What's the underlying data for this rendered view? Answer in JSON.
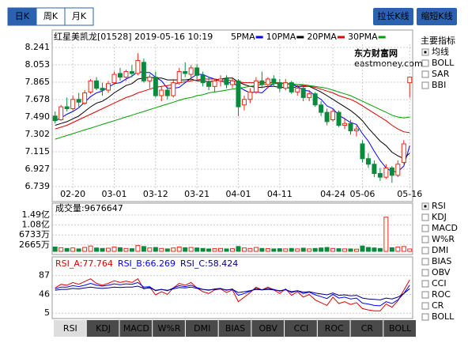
{
  "ui": {
    "period_tabs": [
      "日K",
      "周K",
      "月K"
    ],
    "buttons": [
      "拉长K线",
      "缩短K线"
    ],
    "watermark": [
      "东方财富网",
      "eastmoney.com"
    ],
    "main_indicators": {
      "title": "主要指标",
      "options": [
        "均线",
        "BOLL",
        "SAR",
        "BBI"
      ],
      "selected": 0
    },
    "sub_indicators": {
      "options": [
        "RSI",
        "KDJ",
        "MACD",
        "W%R",
        "DMI",
        "BIAS",
        "OBV",
        "CCI",
        "ROC",
        "CR",
        "BOLL"
      ],
      "selected": 0
    },
    "bottom_tabs": {
      "options": [
        "RSI",
        "KDJ",
        "MACD",
        "W%R",
        "DMI",
        "BIAS",
        "OBV",
        "CCI",
        "ROC",
        "CR",
        "BOLL"
      ],
      "selected": 0
    }
  },
  "chart_data": [
    {
      "type": "candlestick",
      "title": "红星美凯龙[01528] 2019-05-16 10:19",
      "categories": [
        null,
        null,
        null,
        "02-20",
        null,
        null,
        null,
        null,
        null,
        null,
        "03-01",
        null,
        null,
        null,
        null,
        null,
        null,
        "03-12",
        null,
        null,
        null,
        null,
        null,
        null,
        "03-21",
        null,
        null,
        null,
        null,
        null,
        null,
        "04-01",
        null,
        null,
        null,
        null,
        null,
        null,
        "04-11",
        null,
        null,
        null,
        null,
        null,
        null,
        null,
        null,
        "04-24",
        null,
        null,
        null,
        null,
        "05-06",
        null,
        null,
        null,
        null,
        null,
        null,
        null,
        "05-16"
      ],
      "open": [
        7.5,
        7.46,
        7.6,
        7.58,
        7.68,
        7.64,
        7.76,
        7.88,
        7.8,
        7.78,
        7.86,
        7.96,
        7.92,
        7.98,
        7.96,
        8.08,
        7.88,
        7.92,
        7.72,
        7.78,
        7.72,
        7.86,
        7.98,
        7.95,
        8.02,
        7.94,
        7.86,
        7.82,
        7.88,
        7.9,
        7.84,
        7.88,
        7.62,
        7.68,
        7.76,
        7.88,
        7.84,
        7.9,
        7.86,
        7.8,
        7.86,
        7.76,
        7.8,
        7.7,
        7.74,
        7.62,
        7.54,
        7.46,
        7.54,
        7.4,
        7.42,
        7.34,
        7.2,
        7.04,
        6.98,
        6.88,
        6.84,
        6.94,
        6.86,
        7.0,
        7.86
      ],
      "high": [
        7.55,
        7.62,
        7.7,
        7.72,
        7.75,
        7.78,
        7.9,
        7.92,
        7.86,
        7.88,
        7.98,
        8.02,
        8.0,
        8.05,
        8.18,
        8.12,
        7.95,
        7.98,
        7.82,
        7.82,
        7.9,
        8.02,
        8.08,
        8.05,
        8.06,
        7.98,
        7.92,
        7.9,
        7.94,
        7.94,
        7.92,
        7.9,
        7.72,
        7.8,
        7.92,
        7.98,
        7.92,
        7.94,
        7.9,
        7.9,
        7.88,
        7.84,
        7.82,
        7.78,
        7.76,
        7.66,
        7.58,
        7.58,
        7.56,
        7.48,
        7.46,
        7.4,
        7.24,
        7.1,
        7.02,
        6.94,
        6.98,
        6.96,
        7.02,
        7.24,
        7.92
      ],
      "low": [
        7.42,
        7.45,
        7.55,
        7.56,
        7.6,
        7.62,
        7.74,
        7.78,
        7.72,
        7.75,
        7.84,
        7.88,
        7.88,
        7.92,
        7.94,
        7.86,
        7.8,
        7.7,
        7.66,
        7.68,
        7.7,
        7.84,
        7.92,
        7.88,
        7.9,
        7.82,
        7.78,
        7.76,
        7.82,
        7.8,
        7.8,
        7.5,
        7.56,
        7.64,
        7.74,
        7.8,
        7.8,
        7.82,
        7.76,
        7.78,
        7.74,
        7.72,
        7.66,
        7.66,
        7.6,
        7.5,
        7.4,
        7.44,
        7.38,
        7.36,
        7.3,
        7.28,
        7.0,
        6.94,
        6.84,
        6.8,
        6.82,
        6.78,
        6.84,
        6.98,
        7.7
      ],
      "close": [
        7.45,
        7.6,
        7.58,
        7.68,
        7.65,
        7.75,
        7.88,
        7.8,
        7.78,
        7.85,
        7.95,
        7.92,
        7.98,
        7.96,
        8.1,
        7.88,
        7.92,
        7.72,
        7.78,
        7.72,
        7.86,
        7.98,
        7.96,
        8.02,
        7.94,
        7.86,
        7.82,
        7.88,
        7.9,
        7.84,
        7.88,
        7.6,
        7.68,
        7.76,
        7.88,
        7.84,
        7.9,
        7.86,
        7.8,
        7.86,
        7.76,
        7.8,
        7.7,
        7.74,
        7.62,
        7.54,
        7.44,
        7.55,
        7.4,
        7.42,
        7.34,
        7.36,
        7.04,
        6.98,
        6.88,
        6.84,
        6.94,
        6.86,
        6.98,
        7.2,
        7.92
      ],
      "up_color": "#e8291b",
      "down_color": "#0a8a3c",
      "series": [
        {
          "name": "5PMA",
          "color": "#0000ff",
          "values": [
            7.45,
            7.48,
            7.52,
            7.55,
            7.59,
            7.65,
            7.71,
            7.75,
            7.77,
            7.81,
            7.85,
            7.86,
            7.9,
            7.93,
            7.98,
            7.97,
            7.97,
            7.92,
            7.88,
            7.8,
            7.8,
            7.81,
            7.86,
            7.91,
            7.95,
            7.95,
            7.92,
            7.9,
            7.88,
            7.86,
            7.86,
            7.82,
            7.78,
            7.75,
            7.76,
            7.75,
            7.81,
            7.85,
            7.86,
            7.85,
            7.84,
            7.82,
            7.78,
            7.77,
            7.72,
            7.68,
            7.61,
            7.58,
            7.51,
            7.47,
            7.43,
            7.41,
            7.31,
            7.23,
            7.12,
            7.02,
            6.94,
            6.9,
            6.9,
            6.96,
            7.18
          ]
        },
        {
          "name": "10PMA",
          "color": "#000000",
          "values": [
            7.4,
            7.42,
            7.44,
            7.47,
            7.5,
            7.55,
            7.6,
            7.64,
            7.66,
            7.7,
            7.75,
            7.79,
            7.83,
            7.85,
            7.9,
            7.91,
            7.92,
            7.91,
            7.91,
            7.89,
            7.89,
            7.89,
            7.89,
            7.9,
            7.88,
            7.88,
            7.87,
            7.88,
            7.9,
            7.91,
            7.91,
            7.87,
            7.84,
            7.82,
            7.81,
            7.81,
            7.82,
            7.82,
            7.81,
            7.81,
            7.8,
            7.82,
            7.82,
            7.82,
            7.79,
            7.76,
            7.72,
            7.68,
            7.64,
            7.6,
            7.56,
            7.51,
            7.45,
            7.37,
            7.3,
            7.23,
            7.18,
            7.11,
            7.07,
            7.04,
            7.1
          ]
        },
        {
          "name": "20PMA",
          "color": "#e00000",
          "values": [
            7.36,
            7.38,
            7.4,
            7.43,
            7.46,
            7.49,
            7.52,
            7.55,
            7.58,
            7.61,
            7.64,
            7.67,
            7.7,
            7.72,
            7.75,
            7.77,
            7.79,
            7.81,
            7.82,
            7.83,
            7.84,
            7.86,
            7.87,
            7.88,
            7.89,
            7.9,
            7.9,
            7.9,
            7.89,
            7.89,
            7.88,
            7.87,
            7.86,
            7.86,
            7.86,
            7.86,
            7.86,
            7.86,
            7.86,
            7.85,
            7.84,
            7.84,
            7.83,
            7.82,
            7.81,
            7.79,
            7.77,
            7.75,
            7.72,
            7.7,
            7.68,
            7.65,
            7.61,
            7.57,
            7.53,
            7.49,
            7.45,
            7.4,
            7.36,
            7.33,
            7.32
          ]
        },
        {
          "name": "30PMA",
          "color": "#00a000",
          "values": [
            7.25,
            7.27,
            7.29,
            7.31,
            7.33,
            7.35,
            7.37,
            7.39,
            7.41,
            7.43,
            7.45,
            7.47,
            7.49,
            7.51,
            7.53,
            7.55,
            7.57,
            7.59,
            7.61,
            7.63,
            7.65,
            7.67,
            7.69,
            7.7,
            7.72,
            7.73,
            7.75,
            7.76,
            7.77,
            7.78,
            7.79,
            7.8,
            7.81,
            7.82,
            7.83,
            7.84,
            7.84,
            7.85,
            7.85,
            7.85,
            7.85,
            7.84,
            7.84,
            7.83,
            7.82,
            7.81,
            7.8,
            7.78,
            7.76,
            7.74,
            7.72,
            7.69,
            7.66,
            7.63,
            7.6,
            7.57,
            7.54,
            7.51,
            7.49,
            7.48,
            7.49
          ]
        }
      ],
      "ylim": [
        6.739,
        8.241
      ],
      "yticks": [
        8.241,
        8.053,
        7.865,
        7.678,
        {
          "value": 7.49,
          "label": "7.490"
        },
        7.302,
        7.115,
        6.927,
        6.739
      ],
      "grid": true
    },
    {
      "type": "bar",
      "title": "成交量:",
      "values": [
        18000000,
        15000000,
        12000000,
        14000000,
        10000000,
        16000000,
        22000000,
        14000000,
        12000000,
        13000000,
        18000000,
        15000000,
        12000000,
        11000000,
        24000000,
        20000000,
        14000000,
        16000000,
        12000000,
        10000000,
        14000000,
        18000000,
        15000000,
        16000000,
        14000000,
        12000000,
        10000000,
        11000000,
        12000000,
        10000000,
        11000000,
        20000000,
        14000000,
        12000000,
        16000000,
        12000000,
        11000000,
        10000000,
        11000000,
        10000000,
        12000000,
        10000000,
        13000000,
        10000000,
        12000000,
        14000000,
        16000000,
        12000000,
        11000000,
        10000000,
        10000000,
        9000000,
        22000000,
        16000000,
        14000000,
        12000000,
        140000000,
        15000000,
        18000000,
        20000000,
        9676647
      ],
      "ylim": [
        0,
        149000000
      ],
      "yticks": [
        {
          "value": 149000000,
          "label": "1.49亿"
        },
        {
          "value": 108000000,
          "label": "1.08亿"
        },
        {
          "value": 67330000,
          "label": "6733万"
        },
        {
          "value": 26650000,
          "label": "2665万"
        }
      ],
      "grid": true
    },
    {
      "type": "line",
      "series": [
        {
          "name": "RSI_A:",
          "color": "#e00000",
          "values": [
            60,
            68,
            66,
            72,
            68,
            74,
            80,
            70,
            66,
            70,
            76,
            72,
            75,
            72,
            80,
            58,
            62,
            45,
            52,
            46,
            60,
            70,
            66,
            72,
            60,
            52,
            48,
            56,
            58,
            50,
            56,
            30,
            40,
            50,
            62,
            56,
            62,
            56,
            48,
            58,
            44,
            52,
            40,
            46,
            34,
            28,
            22,
            40,
            26,
            30,
            24,
            28,
            15,
            12,
            10,
            10,
            25,
            18,
            32,
            55,
            77.764
          ]
        },
        {
          "name": "RSI_B:",
          "color": "#0000ff",
          "values": [
            58,
            62,
            62,
            65,
            63,
            66,
            70,
            66,
            64,
            66,
            69,
            67,
            69,
            68,
            72,
            62,
            63,
            54,
            57,
            54,
            60,
            65,
            63,
            66,
            61,
            57,
            55,
            58,
            59,
            55,
            58,
            44,
            48,
            53,
            59,
            56,
            59,
            57,
            53,
            57,
            50,
            54,
            48,
            51,
            45,
            41,
            37,
            46,
            38,
            40,
            36,
            38,
            27,
            25,
            22,
            21,
            30,
            26,
            34,
            48,
            66.269
          ]
        },
        {
          "name": "RSI_C:",
          "color": "#000080",
          "values": [
            55,
            57,
            57,
            59,
            58,
            60,
            62,
            60,
            59,
            60,
            62,
            61,
            62,
            62,
            64,
            59,
            60,
            55,
            57,
            55,
            58,
            61,
            60,
            62,
            59,
            57,
            56,
            57,
            58,
            56,
            57,
            50,
            52,
            54,
            57,
            56,
            57,
            56,
            54,
            56,
            52,
            54,
            51,
            52,
            49,
            47,
            45,
            49,
            44,
            45,
            43,
            44,
            38,
            36,
            35,
            34,
            38,
            36,
            40,
            48,
            58.424
          ]
        }
      ],
      "ylim": [
        -5,
        102
      ],
      "yticks": [
        87,
        46,
        5
      ],
      "grid": true
    }
  ]
}
